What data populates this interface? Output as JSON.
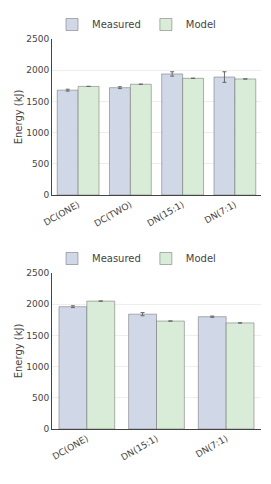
{
  "chart_data": [
    {
      "type": "bar",
      "categories": [
        "DC(ONE)",
        "DC(TWO)",
        "DN(15:1)",
        "DN(7:1)"
      ],
      "series": [
        {
          "name": "Measured",
          "color": "#d0d8e8",
          "values": [
            1680,
            1720,
            1940,
            1890
          ],
          "errors": [
            15,
            15,
            35,
            85
          ]
        },
        {
          "name": "Model",
          "color": "#d8ecd8",
          "values": [
            1740,
            1775,
            1870,
            1860
          ],
          "errors": [
            0,
            0,
            0,
            0
          ]
        }
      ],
      "ylabel": "Energy (kJ)",
      "ylim": [
        0,
        2500
      ],
      "yticks": [
        0,
        500,
        1000,
        1500,
        2000,
        2500
      ],
      "grid": true,
      "legend": "upper left"
    },
    {
      "type": "bar",
      "categories": [
        "DC(ONE)",
        "DN(15:1)",
        "DN(7:1)"
      ],
      "series": [
        {
          "name": "Measured",
          "color": "#d0d8e8",
          "values": [
            1960,
            1840,
            1800
          ],
          "errors": [
            15,
            25,
            10
          ]
        },
        {
          "name": "Model",
          "color": "#d8ecd8",
          "values": [
            2050,
            1730,
            1700
          ],
          "errors": [
            0,
            0,
            0
          ]
        }
      ],
      "ylabel": "Energy (kJ)",
      "ylim": [
        0,
        2500
      ],
      "yticks": [
        0,
        500,
        1000,
        1500,
        2000,
        2500
      ],
      "grid": true,
      "legend": "upper left"
    }
  ]
}
